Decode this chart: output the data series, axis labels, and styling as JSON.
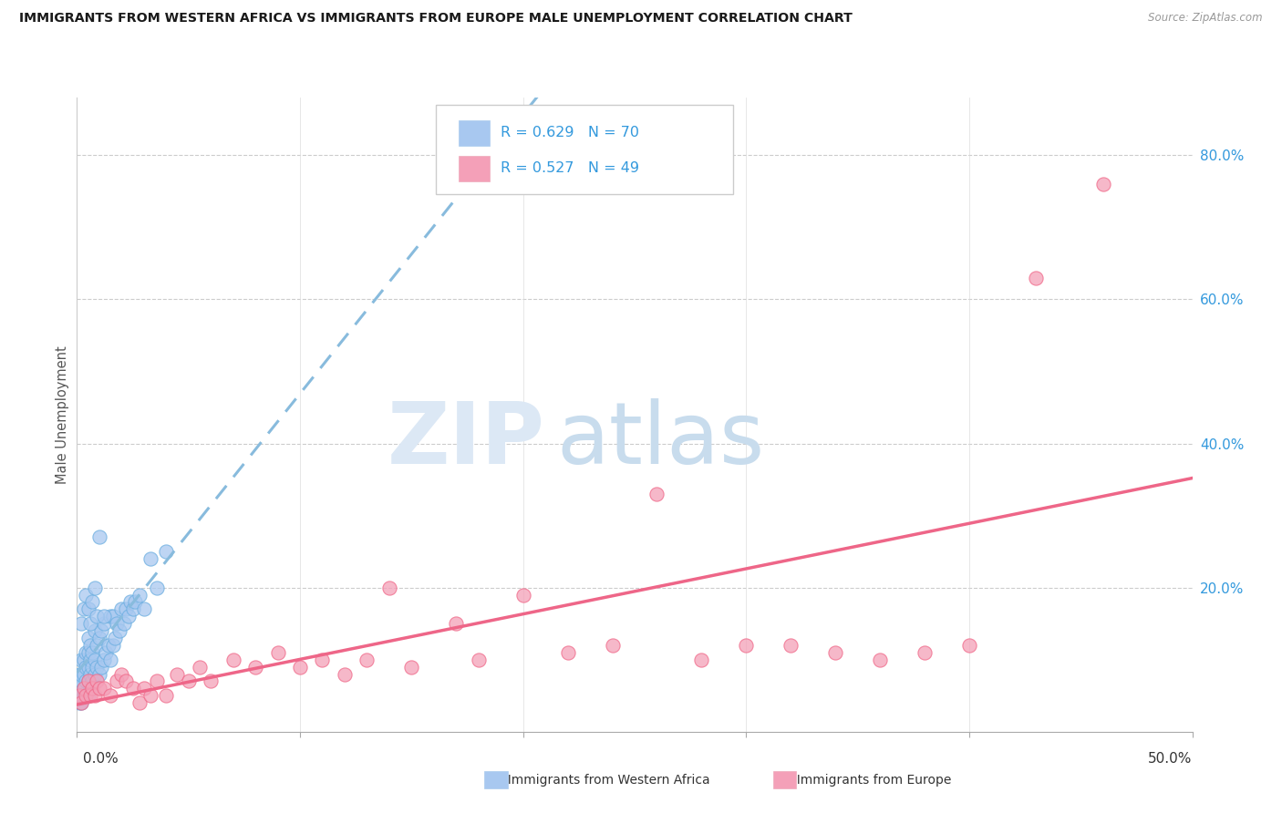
{
  "title": "IMMIGRANTS FROM WESTERN AFRICA VS IMMIGRANTS FROM EUROPE MALE UNEMPLOYMENT CORRELATION CHART",
  "source": "Source: ZipAtlas.com",
  "ylabel": "Male Unemployment",
  "xmin": 0.0,
  "xmax": 0.5,
  "ymin": 0.0,
  "ymax": 0.88,
  "yticks": [
    0.0,
    0.2,
    0.4,
    0.6,
    0.8
  ],
  "ytick_labels": [
    "",
    "20.0%",
    "40.0%",
    "60.0%",
    "80.0%"
  ],
  "legend_r1": "R = 0.629",
  "legend_n1": "N = 70",
  "legend_r2": "R = 0.527",
  "legend_n2": "N = 49",
  "color_blue": "#a8c8f0",
  "color_pink": "#f4a0b8",
  "color_blue_dark": "#6aaee0",
  "color_pink_dark": "#f06888",
  "color_blue_text": "#3399dd",
  "line_blue_color": "#88bbdd",
  "line_pink_color": "#ee6688",
  "watermark_zip": "ZIP",
  "watermark_atlas": "atlas",
  "watermark_color_zip": "#d8e8f4",
  "watermark_color_atlas": "#d0e0ec",
  "series1_x": [
    0.001,
    0.001,
    0.001,
    0.002,
    0.002,
    0.002,
    0.002,
    0.002,
    0.003,
    0.003,
    0.003,
    0.003,
    0.004,
    0.004,
    0.004,
    0.004,
    0.005,
    0.005,
    0.005,
    0.005,
    0.005,
    0.006,
    0.006,
    0.006,
    0.006,
    0.007,
    0.007,
    0.007,
    0.008,
    0.008,
    0.008,
    0.009,
    0.009,
    0.01,
    0.01,
    0.011,
    0.011,
    0.012,
    0.012,
    0.013,
    0.014,
    0.015,
    0.015,
    0.016,
    0.016,
    0.017,
    0.018,
    0.019,
    0.02,
    0.021,
    0.022,
    0.023,
    0.024,
    0.025,
    0.026,
    0.028,
    0.03,
    0.033,
    0.036,
    0.04,
    0.002,
    0.003,
    0.004,
    0.005,
    0.006,
    0.007,
    0.008,
    0.009,
    0.01,
    0.012
  ],
  "series1_y": [
    0.04,
    0.06,
    0.08,
    0.04,
    0.05,
    0.07,
    0.08,
    0.1,
    0.05,
    0.06,
    0.08,
    0.1,
    0.05,
    0.07,
    0.09,
    0.11,
    0.05,
    0.07,
    0.09,
    0.11,
    0.13,
    0.06,
    0.08,
    0.1,
    0.12,
    0.07,
    0.09,
    0.11,
    0.08,
    0.1,
    0.14,
    0.09,
    0.12,
    0.08,
    0.13,
    0.09,
    0.14,
    0.1,
    0.15,
    0.11,
    0.12,
    0.1,
    0.16,
    0.12,
    0.16,
    0.13,
    0.15,
    0.14,
    0.17,
    0.15,
    0.17,
    0.16,
    0.18,
    0.17,
    0.18,
    0.19,
    0.17,
    0.24,
    0.2,
    0.25,
    0.15,
    0.17,
    0.19,
    0.17,
    0.15,
    0.18,
    0.2,
    0.16,
    0.27,
    0.16
  ],
  "series2_x": [
    0.001,
    0.002,
    0.003,
    0.004,
    0.005,
    0.006,
    0.007,
    0.008,
    0.009,
    0.01,
    0.012,
    0.015,
    0.018,
    0.02,
    0.022,
    0.025,
    0.028,
    0.03,
    0.033,
    0.036,
    0.04,
    0.045,
    0.05,
    0.055,
    0.06,
    0.07,
    0.08,
    0.09,
    0.1,
    0.11,
    0.12,
    0.13,
    0.14,
    0.15,
    0.17,
    0.18,
    0.2,
    0.22,
    0.24,
    0.26,
    0.28,
    0.3,
    0.32,
    0.34,
    0.36,
    0.38,
    0.4,
    0.43,
    0.46
  ],
  "series2_y": [
    0.05,
    0.04,
    0.06,
    0.05,
    0.07,
    0.05,
    0.06,
    0.05,
    0.07,
    0.06,
    0.06,
    0.05,
    0.07,
    0.08,
    0.07,
    0.06,
    0.04,
    0.06,
    0.05,
    0.07,
    0.05,
    0.08,
    0.07,
    0.09,
    0.07,
    0.1,
    0.09,
    0.11,
    0.09,
    0.1,
    0.08,
    0.1,
    0.2,
    0.09,
    0.15,
    0.1,
    0.19,
    0.11,
    0.12,
    0.33,
    0.1,
    0.12,
    0.12,
    0.11,
    0.1,
    0.11,
    0.12,
    0.63,
    0.76
  ]
}
